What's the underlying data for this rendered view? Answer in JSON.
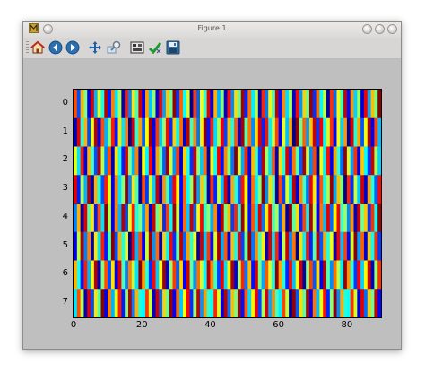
{
  "window": {
    "title": "Figure 1"
  },
  "toolbar": {
    "buttons": [
      {
        "name": "home-button",
        "icon": "home-icon"
      },
      {
        "name": "back-button",
        "icon": "back-arrow-icon"
      },
      {
        "name": "forward-button",
        "icon": "forward-arrow-icon"
      },
      {
        "name": "pan-button",
        "icon": "move-icon"
      },
      {
        "name": "zoom-button",
        "icon": "zoom-icon"
      },
      {
        "name": "subplots-button",
        "icon": "subplots-icon"
      },
      {
        "name": "edit-button",
        "icon": "checkmark-icon"
      },
      {
        "name": "save-button",
        "icon": "save-icon"
      }
    ]
  },
  "chart_data": {
    "type": "heatmap",
    "colormap": "jet",
    "rows": 8,
    "columns": 90,
    "value_range": [
      0,
      1
    ],
    "y_ticks": [
      "0",
      "1",
      "2",
      "3",
      "4",
      "5",
      "6",
      "7"
    ],
    "x_ticks": [
      "0",
      "20",
      "40",
      "60",
      "80"
    ],
    "x_tick_values": [
      0,
      20,
      40,
      60,
      80
    ],
    "xlim": [
      0,
      90
    ],
    "ylim": [
      0,
      8
    ],
    "values": [
      [
        0.8,
        0.2,
        0.7,
        0.5,
        0.1,
        0.9,
        0.3,
        0.6,
        0.4,
        0.95,
        0.15,
        0.75,
        0.35,
        0.55,
        0.05,
        0.85,
        0.25,
        0.65,
        0.45,
        0.92,
        0.12,
        0.72,
        0.32,
        0.52,
        0.08,
        0.88,
        0.28,
        0.68,
        0.48,
        0.98,
        0.18,
        0.78,
        0.38,
        0.58,
        0.02,
        0.82,
        0.22,
        0.62,
        0.42,
        0.9,
        0.1,
        0.7,
        0.3,
        0.5,
        0.06,
        0.86,
        0.26,
        0.66,
        0.46,
        0.96,
        0.16,
        0.76,
        0.36,
        0.56,
        0.04,
        0.84,
        0.24,
        0.64,
        0.44,
        0.94,
        0.14,
        0.74,
        0.34,
        0.54,
        0.07,
        0.87,
        0.27,
        0.67,
        0.47,
        0.97,
        0.17,
        0.77,
        0.37,
        0.57,
        0.03,
        0.83,
        0.23,
        0.63,
        0.43,
        0.93,
        0.13,
        0.73,
        0.33,
        0.53,
        0.09,
        0.89,
        0.29,
        0.69,
        0.49,
        0.99
      ],
      [
        0.05,
        0.9,
        0.4,
        0.7,
        0.2,
        0.6,
        0.95,
        0.1,
        0.8,
        0.3,
        0.5,
        0.85,
        0.15,
        0.65,
        0.35,
        0.75,
        0.02,
        0.92,
        0.42,
        0.72,
        0.22,
        0.62,
        0.97,
        0.12,
        0.82,
        0.32,
        0.52,
        0.87,
        0.17,
        0.67,
        0.37,
        0.77,
        0.07,
        0.94,
        0.44,
        0.74,
        0.24,
        0.64,
        0.99,
        0.14,
        0.84,
        0.34,
        0.54,
        0.89,
        0.19,
        0.69,
        0.39,
        0.79,
        0.09,
        0.96,
        0.46,
        0.76,
        0.26,
        0.66,
        0.91,
        0.16,
        0.86,
        0.36,
        0.56,
        0.81,
        0.11,
        0.61,
        0.31,
        0.71,
        0.01,
        0.98,
        0.48,
        0.78,
        0.28,
        0.68,
        0.93,
        0.18,
        0.88,
        0.38,
        0.58,
        0.83,
        0.13,
        0.63,
        0.33,
        0.73,
        0.03,
        0.9,
        0.41,
        0.71,
        0.21,
        0.61,
        0.95,
        0.11,
        0.81,
        0.31
      ],
      [
        0.6,
        0.35,
        0.85,
        0.1,
        0.7,
        0.45,
        0.2,
        0.95,
        0.55,
        0.25,
        0.8,
        0.05,
        0.65,
        0.4,
        0.15,
        0.9,
        0.5,
        0.3,
        0.75,
        0.02,
        0.62,
        0.37,
        0.87,
        0.12,
        0.72,
        0.47,
        0.22,
        0.97,
        0.57,
        0.27,
        0.82,
        0.07,
        0.67,
        0.42,
        0.17,
        0.92,
        0.52,
        0.32,
        0.77,
        0.04,
        0.64,
        0.39,
        0.89,
        0.14,
        0.74,
        0.49,
        0.24,
        0.99,
        0.59,
        0.29,
        0.84,
        0.09,
        0.69,
        0.44,
        0.19,
        0.94,
        0.54,
        0.34,
        0.79,
        0.06,
        0.66,
        0.41,
        0.91,
        0.16,
        0.76,
        0.46,
        0.21,
        0.96,
        0.56,
        0.26,
        0.81,
        0.01,
        0.61,
        0.36,
        0.86,
        0.11,
        0.71,
        0.43,
        0.23,
        0.98,
        0.58,
        0.28,
        0.83,
        0.08,
        0.68,
        0.38,
        0.18,
        0.93,
        0.53,
        0.33
      ],
      [
        0.9,
        0.15,
        0.55,
        0.3,
        0.95,
        0.05,
        0.7,
        0.4,
        0.2,
        0.85,
        0.6,
        0.1,
        0.75,
        0.35,
        0.5,
        0.98,
        0.25,
        0.65,
        0.45,
        0.02,
        0.8,
        0.18,
        0.58,
        0.33,
        0.93,
        0.08,
        0.73,
        0.43,
        0.23,
        0.88,
        0.63,
        0.13,
        0.78,
        0.38,
        0.53,
        0.96,
        0.28,
        0.68,
        0.48,
        0.04,
        0.83,
        0.16,
        0.56,
        0.31,
        0.91,
        0.06,
        0.71,
        0.41,
        0.21,
        0.86,
        0.61,
        0.11,
        0.76,
        0.36,
        0.51,
        0.99,
        0.26,
        0.66,
        0.46,
        0.03,
        0.81,
        0.19,
        0.59,
        0.34,
        0.94,
        0.09,
        0.74,
        0.44,
        0.24,
        0.89,
        0.64,
        0.14,
        0.79,
        0.39,
        0.54,
        0.97,
        0.29,
        0.69,
        0.49,
        0.01,
        0.84,
        0.17,
        0.57,
        0.32,
        0.92,
        0.07,
        0.72,
        0.42,
        0.22,
        0.87
      ],
      [
        0.25,
        0.7,
        0.05,
        0.9,
        0.45,
        0.65,
        0.15,
        0.8,
        0.35,
        0.99,
        0.55,
        0.1,
        0.75,
        0.3,
        0.95,
        0.2,
        0.6,
        0.85,
        0.4,
        0.5,
        0.27,
        0.72,
        0.07,
        0.92,
        0.47,
        0.67,
        0.17,
        0.82,
        0.37,
        0.97,
        0.57,
        0.12,
        0.77,
        0.32,
        0.93,
        0.22,
        0.62,
        0.87,
        0.42,
        0.52,
        0.29,
        0.74,
        0.09,
        0.94,
        0.49,
        0.69,
        0.19,
        0.84,
        0.39,
        0.96,
        0.59,
        0.14,
        0.79,
        0.34,
        0.91,
        0.24,
        0.64,
        0.89,
        0.44,
        0.54,
        0.21,
        0.71,
        0.03,
        0.98,
        0.46,
        0.66,
        0.16,
        0.81,
        0.36,
        0.95,
        0.56,
        0.11,
        0.76,
        0.31,
        0.9,
        0.23,
        0.63,
        0.88,
        0.43,
        0.53,
        0.26,
        0.73,
        0.06,
        0.93,
        0.48,
        0.68,
        0.18,
        0.83,
        0.38,
        0.97
      ],
      [
        0.1,
        0.55,
        0.95,
        0.25,
        0.75,
        0.05,
        0.65,
        0.35,
        0.85,
        0.15,
        0.45,
        0.99,
        0.2,
        0.7,
        0.4,
        0.6,
        0.02,
        0.9,
        0.3,
        0.8,
        0.12,
        0.57,
        0.97,
        0.27,
        0.77,
        0.07,
        0.67,
        0.37,
        0.87,
        0.17,
        0.47,
        0.94,
        0.22,
        0.72,
        0.42,
        0.62,
        0.04,
        0.92,
        0.32,
        0.82,
        0.14,
        0.59,
        0.96,
        0.29,
        0.79,
        0.09,
        0.69,
        0.39,
        0.89,
        0.19,
        0.49,
        0.98,
        0.24,
        0.74,
        0.44,
        0.64,
        0.06,
        0.91,
        0.34,
        0.84,
        0.11,
        0.56,
        0.93,
        0.26,
        0.76,
        0.01,
        0.66,
        0.36,
        0.86,
        0.16,
        0.46,
        0.95,
        0.21,
        0.71,
        0.41,
        0.61,
        0.03,
        0.88,
        0.31,
        0.81,
        0.13,
        0.58,
        0.99,
        0.28,
        0.78,
        0.08,
        0.68,
        0.38,
        0.83,
        0.18
      ],
      [
        0.7,
        0.4,
        0.15,
        0.85,
        0.3,
        0.6,
        0.95,
        0.05,
        0.5,
        0.8,
        0.2,
        0.65,
        0.1,
        0.9,
        0.45,
        0.25,
        0.75,
        0.55,
        0.35,
        0.99,
        0.72,
        0.42,
        0.17,
        0.87,
        0.32,
        0.62,
        0.97,
        0.07,
        0.52,
        0.82,
        0.22,
        0.67,
        0.12,
        0.92,
        0.47,
        0.27,
        0.77,
        0.57,
        0.37,
        0.94,
        0.74,
        0.44,
        0.19,
        0.89,
        0.34,
        0.64,
        0.96,
        0.09,
        0.54,
        0.84,
        0.24,
        0.69,
        0.14,
        0.91,
        0.49,
        0.29,
        0.79,
        0.59,
        0.39,
        0.98,
        0.71,
        0.41,
        0.16,
        0.86,
        0.31,
        0.61,
        0.93,
        0.04,
        0.51,
        0.81,
        0.21,
        0.66,
        0.11,
        0.95,
        0.46,
        0.26,
        0.76,
        0.56,
        0.36,
        0.97,
        0.73,
        0.43,
        0.18,
        0.88,
        0.33,
        0.63,
        0.92,
        0.06,
        0.53,
        0.83
      ],
      [
        0.35,
        0.8,
        0.55,
        0.05,
        0.9,
        0.2,
        0.65,
        0.45,
        0.99,
        0.1,
        0.75,
        0.3,
        0.6,
        0.85,
        0.15,
        0.5,
        0.95,
        0.25,
        0.7,
        0.4,
        0.37,
        0.82,
        0.57,
        0.07,
        0.92,
        0.22,
        0.67,
        0.47,
        0.97,
        0.12,
        0.77,
        0.32,
        0.62,
        0.87,
        0.17,
        0.52,
        0.93,
        0.27,
        0.72,
        0.42,
        0.39,
        0.84,
        0.59,
        0.09,
        0.94,
        0.24,
        0.69,
        0.49,
        0.96,
        0.14,
        0.79,
        0.34,
        0.64,
        0.89,
        0.19,
        0.54,
        0.91,
        0.29,
        0.74,
        0.44,
        0.36,
        0.81,
        0.56,
        0.03,
        0.98,
        0.21,
        0.66,
        0.46,
        0.95,
        0.11,
        0.76,
        0.31,
        0.61,
        0.86,
        0.16,
        0.51,
        0.99,
        0.26,
        0.71,
        0.41,
        0.38,
        0.83,
        0.58,
        0.08,
        0.9,
        0.23,
        0.68,
        0.48,
        0.93,
        0.13
      ]
    ]
  }
}
